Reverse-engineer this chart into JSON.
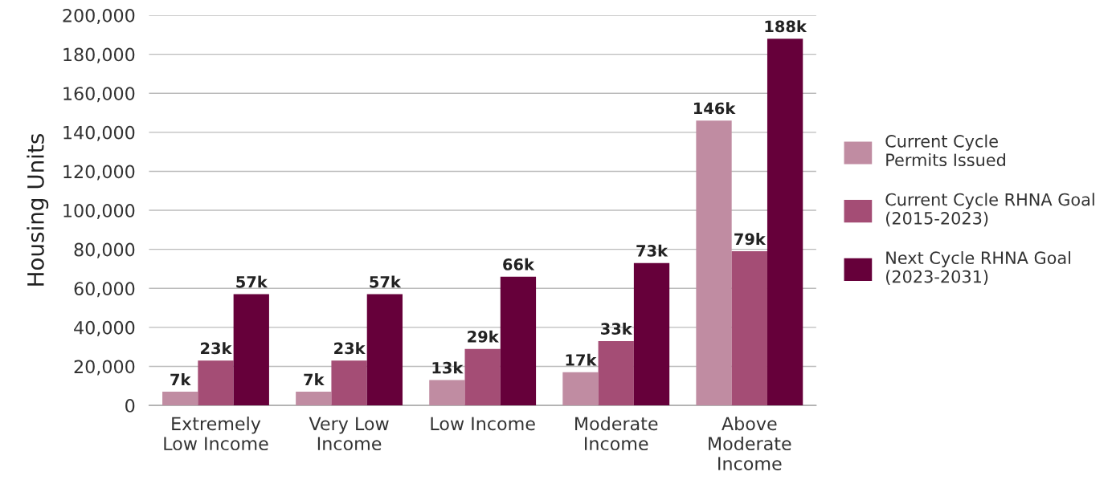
{
  "chart_data": {
    "type": "bar",
    "ylabel": "Housing Units",
    "categories": [
      "Extremely\nLow Income",
      "Very Low\nIncome",
      "Low Income",
      "Moderate\nIncome",
      "Above\nModerate\nIncome"
    ],
    "series": [
      {
        "name": "Current Cycle\nPermits Issued",
        "color": "#c08ca2",
        "values": [
          7000,
          7000,
          13000,
          17000,
          146000
        ],
        "value_labels": [
          "7k",
          "7k",
          "13k",
          "17k",
          "146k"
        ]
      },
      {
        "name": "Current Cycle RHNA Goal\n(2015-2023)",
        "color": "#a44d75",
        "values": [
          23000,
          23000,
          29000,
          33000,
          79000
        ],
        "value_labels": [
          "23k",
          "23k",
          "29k",
          "33k",
          "79k"
        ]
      },
      {
        "name": "Next Cycle RHNA Goal\n(2023-2031)",
        "color": "#66003a",
        "values": [
          57000,
          57000,
          66000,
          73000,
          188000
        ],
        "value_labels": [
          "57k",
          "57k",
          "66k",
          "73k",
          "188k"
        ]
      }
    ],
    "ylim": [
      0,
      200000
    ],
    "yticks": [
      {
        "value": 0,
        "label": "0"
      },
      {
        "value": 20000,
        "label": "20,000"
      },
      {
        "value": 40000,
        "label": "40,000"
      },
      {
        "value": 60000,
        "label": "60,000"
      },
      {
        "value": 80000,
        "label": "80,000"
      },
      {
        "value": 100000,
        "label": "100,000"
      },
      {
        "value": 120000,
        "label": "120,000"
      },
      {
        "value": 140000,
        "label": "140,000"
      },
      {
        "value": 160000,
        "label": "160,000"
      },
      {
        "value": 180000,
        "label": "180,000"
      },
      {
        "value": 200000,
        "label": "200,000"
      }
    ],
    "grid": "y",
    "legend": "right"
  }
}
